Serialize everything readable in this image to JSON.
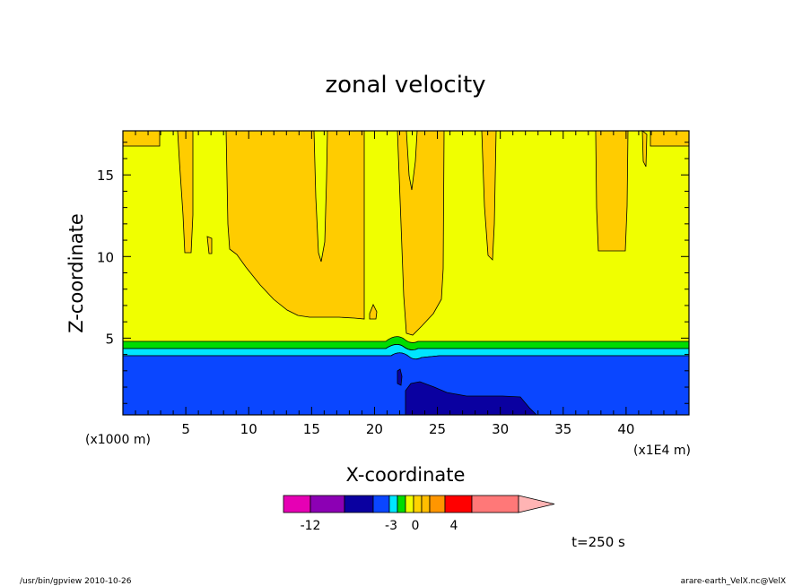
{
  "chart_data": {
    "type": "heatmap",
    "title": "zonal velocity",
    "xlabel": "X-coordinate",
    "ylabel": "Z-coordinate",
    "x_unit_left": "(x1000 m)",
    "x_unit_right": "(x1E4 m)",
    "xlim": [
      0,
      45
    ],
    "ylim": [
      0.3,
      17.7
    ],
    "x_ticks": [
      5,
      10,
      15,
      20,
      25,
      30,
      35,
      40
    ],
    "y_ticks": [
      5,
      10,
      15
    ],
    "colorbar": {
      "colors": [
        "#e600b4",
        "#8c00b4",
        "#0a00a0",
        "#0a46ff",
        "#00e6ff",
        "#00dc00",
        "#f0ff00",
        "#ffd200",
        "#ffbe00",
        "#ff9600",
        "#ff0000",
        "#ff7878",
        "#ffb4b4"
      ],
      "tick_labels": [
        "-12",
        "-3",
        "0",
        "4"
      ]
    },
    "time_label": "t=250 s",
    "colors": {
      "background_level": "#f0ff00",
      "upper_level": "#ffcc00",
      "low_level": "#0a46ff",
      "core_level": "#0a00a0",
      "band_green": "#00dc00",
      "band_cyan": "#00e6ff"
    }
  },
  "footer": {
    "left": "/usr/bin/gpview  2010-10-26",
    "right": "arare-earth_VelX.nc@VelX"
  }
}
